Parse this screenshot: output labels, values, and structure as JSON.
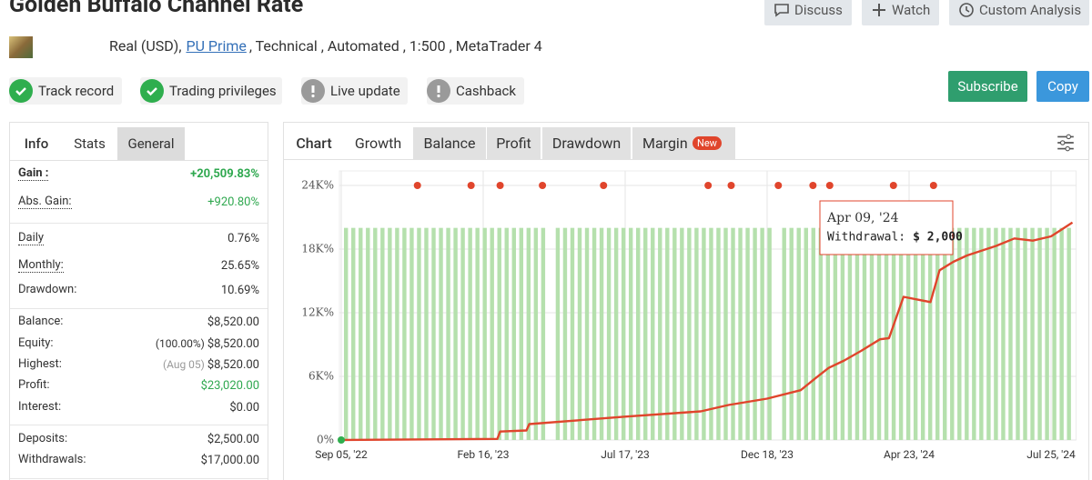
{
  "header": {
    "title": "Golden Buffalo Channel Rate",
    "buttons": [
      "Discuss",
      "Watch",
      "Custom Analysis"
    ],
    "account": {
      "type": "Real (USD),",
      "broker": "PU Prime",
      "details": ", Technical , Automated , 1:500 , MetaTrader 4"
    }
  },
  "badges": [
    "Track record",
    "Trading privileges",
    "Live update",
    "Cashback"
  ],
  "actions": [
    "Subscribe",
    "Copy"
  ],
  "stats": {
    "tabs": [
      "Info",
      "Stats",
      "General"
    ],
    "rows": [
      {
        "label": "Gain :",
        "value": "+20,509.83%"
      },
      {
        "label": "Abs. Gain:",
        "value": "+920.80%"
      },
      {
        "label": "Daily",
        "value": "0.76%"
      },
      {
        "label": "Monthly:",
        "value": "25.65%"
      },
      {
        "label": "Drawdown:",
        "value": "10.69%"
      },
      {
        "label": "Balance:",
        "value": "$8,520.00"
      },
      {
        "label": "Equity:",
        "note": "(100.00%)",
        "value": "$8,520.00"
      },
      {
        "label": "Highest:",
        "note": "(Aug 05)",
        "value": "$8,520.00"
      },
      {
        "label": "Profit:",
        "value": "$23,020.00"
      },
      {
        "label": "Interest:",
        "value": "$0.00"
      },
      {
        "label": "Deposits:",
        "value": "$2,500.00"
      },
      {
        "label": "Withdrawals:",
        "value": "$17,000.00"
      }
    ]
  },
  "chart_tabs": {
    "tabs": [
      "Chart",
      "Growth",
      "Balance",
      "Profit",
      "Drawdown",
      "Margin"
    ],
    "new_badge": "New"
  },
  "chart_data": {
    "type": "line",
    "series": [
      {
        "name": "Growth",
        "color": "#e0452c",
        "x": [
          "2022-09-05",
          "2023-03-03",
          "2023-03-06",
          "2023-04-03",
          "2023-04-06",
          "2023-07-17",
          "2023-10-07",
          "2023-11-06",
          "2023-12-18",
          "2024-01-17",
          "2024-01-30",
          "2024-02-11",
          "2024-02-25",
          "2024-03-11",
          "2024-03-28",
          "2024-04-05",
          "2024-04-18",
          "2024-05-07",
          "2024-05-13",
          "2024-05-22",
          "2024-05-31",
          "2024-06-19",
          "2024-07-01",
          "2024-07-13",
          "2024-07-25",
          "2024-08-08"
        ],
        "values": [
          0,
          100,
          800,
          900,
          1500,
          2200,
          2700,
          3300,
          3900,
          4700,
          5800,
          6800,
          7500,
          8400,
          9500,
          9600,
          13500,
          13000,
          16000,
          16800,
          17400,
          18300,
          19000,
          18800,
          19200,
          20500
        ]
      }
    ],
    "bars": {
      "color": "#b5e0ad",
      "values": [
        20000,
        20000,
        20000,
        20000,
        20000,
        20000,
        20000,
        20000,
        20000,
        20000,
        20000,
        20000,
        20000,
        20000,
        20000,
        20000,
        20000,
        20000,
        20000,
        20000,
        20000,
        20000,
        20000,
        20000,
        20000,
        20000,
        20000,
        20000,
        null,
        20000,
        20000,
        20000,
        20000,
        20000,
        20000,
        20000,
        20000,
        20000,
        20000,
        20000,
        20000,
        20000,
        20000,
        20000,
        20000,
        20000,
        20000,
        20000,
        20000,
        20000,
        20000,
        20000,
        20000,
        20000,
        20000,
        20000,
        20000,
        20000,
        20000,
        null,
        20000,
        20000,
        20000,
        20000,
        20000,
        20000,
        20000,
        20000,
        20000,
        20000,
        20000,
        20000,
        20000,
        20000,
        20000,
        20000,
        20000,
        20000,
        20000,
        20000,
        20000,
        20000,
        20000,
        20000,
        20000,
        20000,
        20000,
        20000,
        20000,
        20000,
        20000,
        20000,
        20000,
        20000,
        20000,
        20000,
        20000,
        20000,
        20000,
        20000
      ]
    },
    "markers": {
      "color": "#e0452c",
      "x": [
        "2022-12-02",
        "2023-02-02",
        "2023-03-06",
        "2023-04-20",
        "2023-06-24",
        "2023-10-15",
        "2023-11-09",
        "2023-12-28",
        "2024-01-28",
        "2024-02-12",
        "2024-04-09",
        "2024-05-09"
      ]
    },
    "tooltip": {
      "date": "Apr 09, '24",
      "label": "Withdrawal:",
      "amount": "$ 2,000"
    },
    "xlim": [
      "2022-09-05",
      "2024-08-08"
    ],
    "xticks": [
      {
        "value": "2022-09-05",
        "label": "Sep 05, '22"
      },
      {
        "value": "2023-02-16",
        "label": "Feb 16, '23"
      },
      {
        "value": "2023-07-17",
        "label": "Jul 17, '23"
      },
      {
        "value": "2023-12-18",
        "label": "Dec 18, '23"
      },
      {
        "value": "2024-04-23",
        "label": "Apr 23, '24"
      },
      {
        "value": "2024-07-25",
        "label": "Jul 25, '24"
      }
    ],
    "ylim": [
      0,
      24000
    ],
    "yticks": [
      {
        "value": 0,
        "label": "0%"
      },
      {
        "value": 6000,
        "label": "6K%"
      },
      {
        "value": 12000,
        "label": "12K%"
      },
      {
        "value": 18000,
        "label": "18K%"
      },
      {
        "value": 24000,
        "label": "24K%"
      }
    ],
    "grid": true
  }
}
